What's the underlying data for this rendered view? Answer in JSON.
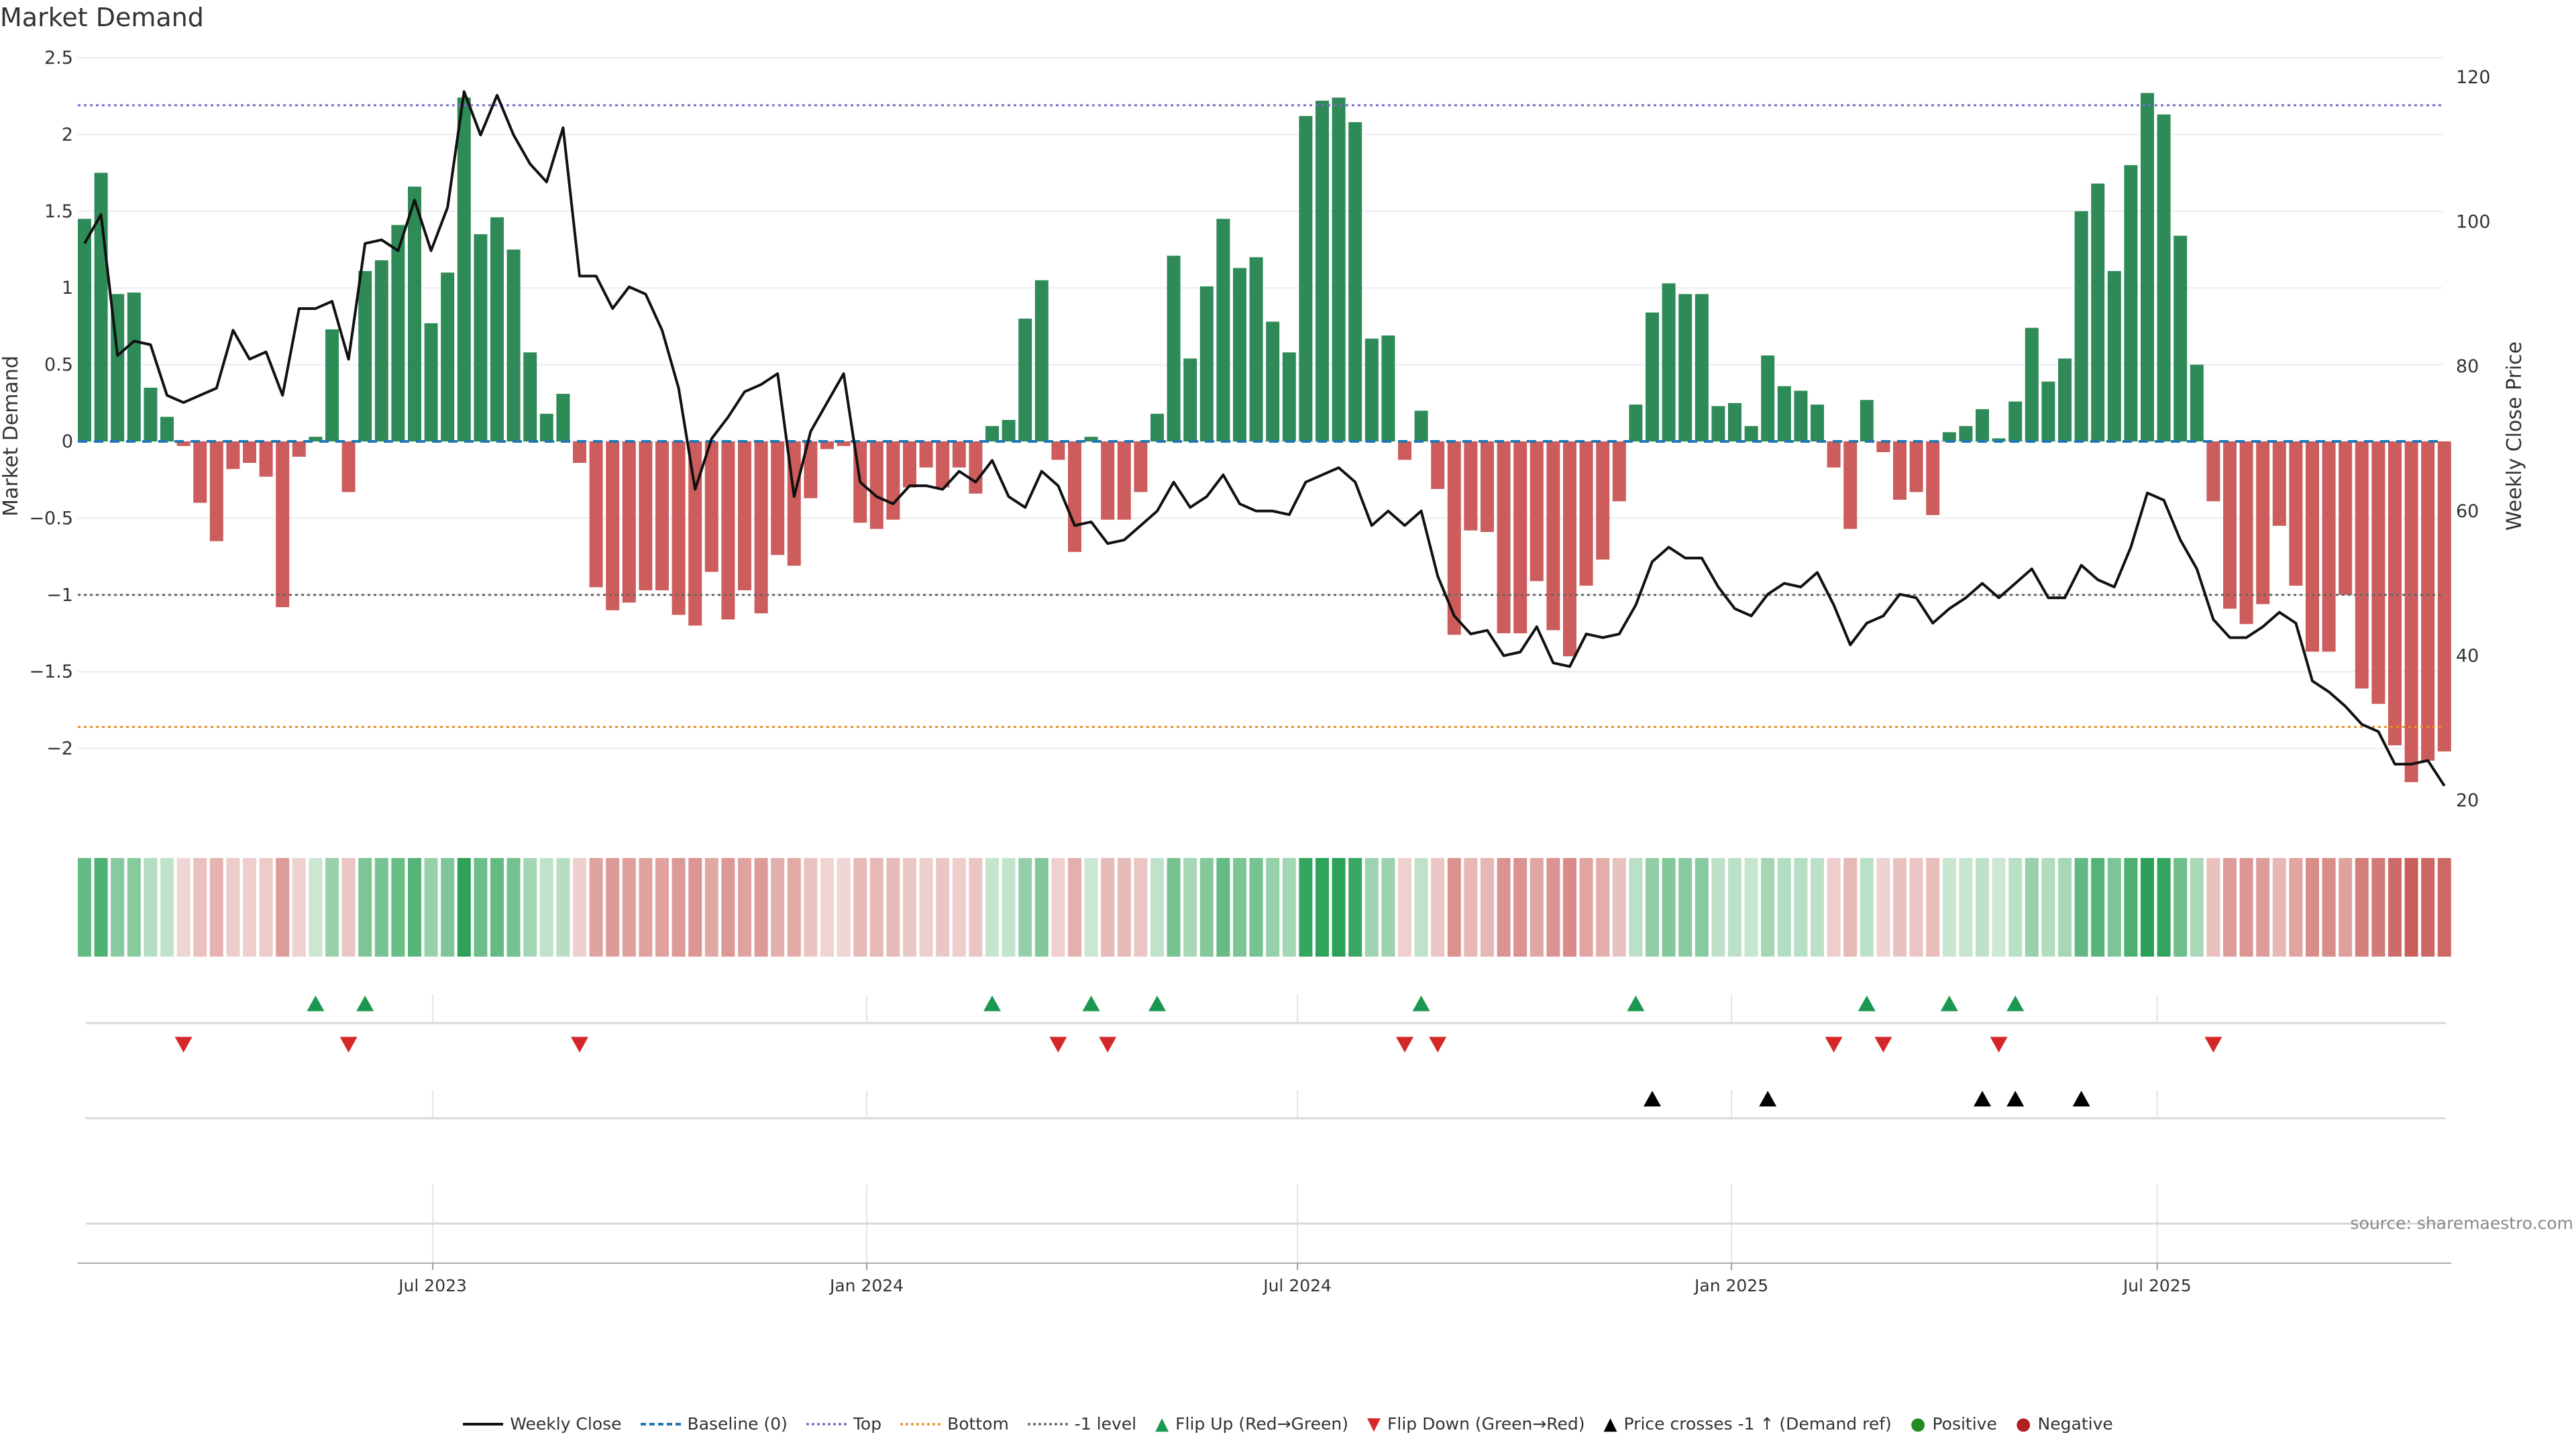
{
  "chart_data": {
    "type": "bar",
    "title": "Market Demand",
    "ylabel": "Market Demand",
    "y2label": "Weekly Close Price",
    "ylim": [
      -2.5,
      2.5
    ],
    "y2lim": [
      20,
      120
    ],
    "yticks": [
      2.5,
      2,
      1.5,
      1,
      0.5,
      0,
      -0.5,
      -1,
      -1.5,
      -2
    ],
    "ytick_labels": [
      "2.5",
      "2",
      "1.5",
      "1",
      "0.5",
      "0",
      "−0.5",
      "−1",
      "−1.5",
      "−2"
    ],
    "y2ticks": [
      120,
      100,
      80,
      60,
      40,
      20
    ],
    "y2tick_labels": [
      "120",
      "100",
      "80",
      "60",
      "40",
      "20"
    ],
    "xticks_week_index": [
      21.1,
      47.4,
      73.5,
      99.8,
      125.6
    ],
    "xtick_labels": [
      "Jul 2023",
      "Jan 2024",
      "Jul 2024",
      "Jan 2025",
      "Jul 2025"
    ],
    "levels": {
      "top": 2.19,
      "bottom": -1.86,
      "minus_one": -1,
      "baseline": 0
    },
    "demand": [
      1.45,
      1.75,
      0.96,
      0.97,
      0.35,
      0.16,
      -0.03,
      -0.4,
      -0.65,
      -0.18,
      -0.14,
      -0.23,
      -1.08,
      -0.1,
      0.03,
      0.73,
      -0.33,
      1.11,
      1.18,
      1.41,
      1.66,
      0.77,
      1.1,
      2.24,
      1.35,
      1.46,
      1.25,
      0.58,
      0.18,
      0.31,
      -0.14,
      -0.95,
      -1.1,
      -1.05,
      -0.97,
      -0.97,
      -1.13,
      -1.2,
      -0.85,
      -1.16,
      -0.97,
      -1.12,
      -0.74,
      -0.81,
      -0.37,
      -0.05,
      -0.03,
      -0.53,
      -0.57,
      -0.51,
      -0.3,
      -0.17,
      -0.3,
      -0.17,
      -0.34,
      0.1,
      0.14,
      0.8,
      1.05,
      -0.12,
      -0.72,
      0.03,
      -0.51,
      -0.51,
      -0.33,
      0.18,
      1.21,
      0.54,
      1.01,
      1.45,
      1.13,
      1.2,
      0.78,
      0.58,
      2.12,
      2.22,
      2.24,
      2.08,
      0.67,
      0.69,
      -0.12,
      0.2,
      -0.31,
      -1.26,
      -0.58,
      -0.59,
      -1.25,
      -1.25,
      -0.91,
      -1.23,
      -1.4,
      -0.94,
      -0.77,
      -0.39,
      0.24,
      0.84,
      1.03,
      0.96,
      0.96,
      0.23,
      0.25,
      0.1,
      0.56,
      0.36,
      0.33,
      0.24,
      -0.17,
      -0.57,
      0.27,
      -0.07,
      -0.38,
      -0.33,
      -0.48,
      0.06,
      0.1,
      0.21,
      0.02,
      0.26,
      0.74,
      0.39,
      0.54,
      1.5,
      1.68,
      1.11,
      1.8,
      2.27,
      2.13,
      1.34,
      0.5,
      -0.39,
      -1.09,
      -1.19,
      -1.06,
      -0.55,
      -0.94,
      -1.37,
      -1.37,
      -1.0,
      -1.61,
      -1.71,
      -1.98,
      -2.22,
      -2.08,
      -2.02
    ],
    "weekly_close": [
      97,
      101,
      81.5,
      83.5,
      83,
      76,
      75,
      76,
      77,
      85,
      81,
      82,
      76,
      88,
      88,
      89,
      81,
      97,
      97.5,
      96,
      103,
      96,
      102,
      118,
      112,
      117.5,
      112,
      108,
      105.5,
      113,
      92.5,
      92.5,
      88,
      91,
      90,
      85,
      77,
      63,
      70,
      73,
      76.5,
      77.5,
      79,
      62,
      71,
      75,
      79,
      64,
      62,
      61,
      63.5,
      63.5,
      63,
      65.5,
      64,
      67,
      62,
      60.5,
      65.5,
      63.5,
      58,
      58.5,
      55.5,
      56,
      58,
      60,
      64,
      60.5,
      62,
      65,
      61,
      60,
      60,
      59.5,
      64,
      65,
      66,
      64,
      58,
      60,
      58,
      60,
      51,
      45.5,
      43,
      43.5,
      40,
      40.5,
      44,
      39,
      38.5,
      43,
      42.5,
      43,
      47,
      53,
      55,
      53.5,
      53.5,
      49.5,
      46.5,
      45.5,
      48.5,
      50,
      49.5,
      51.5,
      47,
      41.5,
      44.5,
      45.5,
      48.5,
      48,
      44.5,
      46.5,
      48,
      50,
      48,
      50,
      52,
      48,
      48,
      52.5,
      50.5,
      49.5,
      55,
      62.5,
      61.5,
      56,
      52,
      45,
      42.5,
      42.5,
      44,
      46,
      44.5,
      36.5,
      35,
      33,
      30.5,
      29.5,
      25,
      25,
      25.5,
      22
    ],
    "flip_up_idx": [
      14,
      17,
      55,
      61,
      65,
      81,
      94,
      108,
      113,
      117
    ],
    "flip_down_idx": [
      6,
      16,
      30,
      59,
      62,
      80,
      82,
      106,
      109,
      116,
      129
    ],
    "price_cross_idx": [
      95,
      102,
      115,
      117,
      121
    ],
    "colors": {
      "positive": "#2e8b57",
      "negative": "#cd5c5c",
      "line": "#111111",
      "baseline": "#1f77b4",
      "top": "#7b68c8",
      "bottom": "#e8902a",
      "minus_one": "#666666",
      "flip_up": "#1a9850",
      "flip_down": "#d62728",
      "cross": "#000000",
      "pos_dot": "#228b22",
      "neg_dot": "#b22222"
    },
    "legend": [
      {
        "label": "Weekly Close",
        "kind": "line"
      },
      {
        "label": "Baseline (0)",
        "kind": "baseline"
      },
      {
        "label": "Top",
        "kind": "top"
      },
      {
        "label": "Bottom",
        "kind": "bottom"
      },
      {
        "label": "-1 level",
        "kind": "minus_one"
      },
      {
        "label": "Flip Up (Red→Green)",
        "kind": "flip_up"
      },
      {
        "label": "Flip Down (Green→Red)",
        "kind": "flip_down"
      },
      {
        "label": "Price crosses -1 ↑ (Demand ref)",
        "kind": "cross"
      },
      {
        "label": "Positive",
        "kind": "pos_dot"
      },
      {
        "label": "Negative",
        "kind": "neg_dot"
      }
    ],
    "legend_placement": "bottom",
    "source": "source: sharemaestro.com"
  }
}
